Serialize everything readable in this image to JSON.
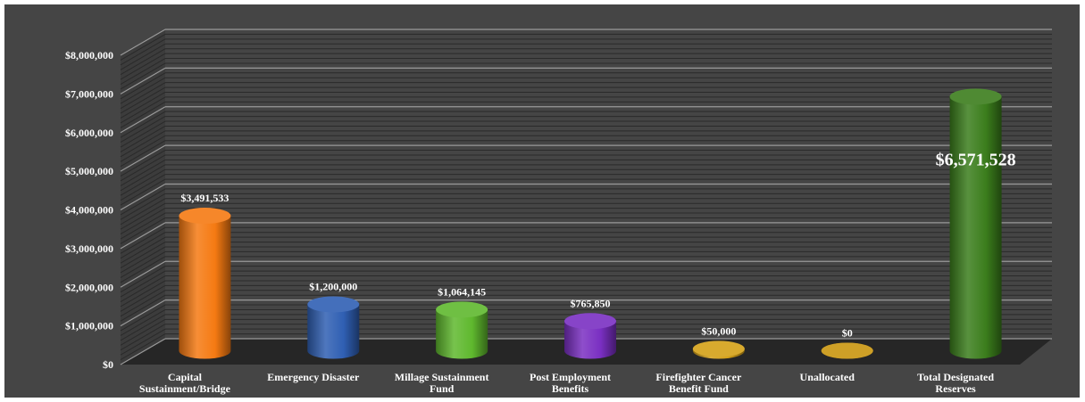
{
  "chart_data": {
    "type": "bar",
    "title": "",
    "xlabel": "",
    "ylabel": "",
    "ylim": [
      0,
      8000000
    ],
    "y_ticks": [
      "$0",
      "$1,000,000",
      "$2,000,000",
      "$3,000,000",
      "$4,000,000",
      "$5,000,000",
      "$6,000,000",
      "$7,000,000",
      "$8,000,000"
    ],
    "grid": true,
    "style": "3d-cylinder",
    "categories": [
      [
        "Capital",
        "Sustainment/Bridge"
      ],
      [
        "Emergency Disaster"
      ],
      [
        "Millage Sustainment",
        "Fund"
      ],
      [
        "Post Employment",
        "Benefits"
      ],
      [
        "Firefighter Cancer",
        "Benefit Fund"
      ],
      [
        "Unallocated"
      ],
      [
        "Total Designated",
        "Reserves"
      ]
    ],
    "values": [
      3491533,
      1200000,
      1064145,
      765850,
      50000,
      0,
      6571528
    ],
    "data_labels": [
      "$3,491,533",
      "$1,200,000",
      "$1,064,145",
      "$765,850",
      "$50,000",
      "$0",
      "$6,571,528"
    ],
    "colors": [
      "#f57a12",
      "#2f5fb3",
      "#5fb82e",
      "#7a2fc2",
      "#d4a017",
      "#c9950f",
      "#3b7d1c"
    ],
    "background_color": "#454545",
    "floor_color": "#262626"
  }
}
